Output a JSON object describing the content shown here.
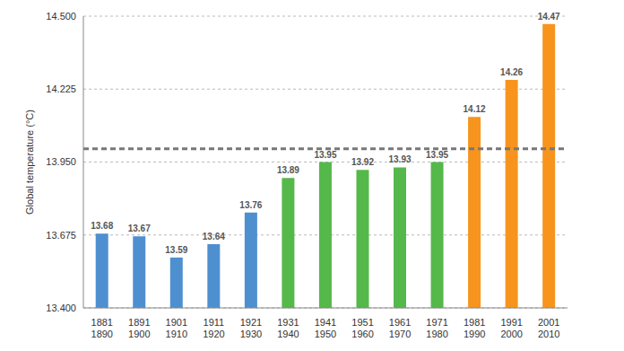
{
  "chart_data": {
    "type": "bar",
    "y_label": "Global temperature (°C)",
    "categories": [
      "1881\n1890",
      "1891\n1900",
      "1901\n1910",
      "1911\n1920",
      "1921\n1930",
      "1931\n1940",
      "1941\n1950",
      "1951\n1960",
      "1961\n1970",
      "1971\n1980",
      "1981\n1990",
      "1991\n2000",
      "2001\n2010"
    ],
    "values": [
      13.68,
      13.67,
      13.59,
      13.64,
      13.76,
      13.89,
      13.95,
      13.92,
      13.93,
      13.95,
      14.12,
      14.26,
      14.47
    ],
    "colors": [
      "#4e8fd0",
      "#4e8fd0",
      "#4e8fd0",
      "#4e8fd0",
      "#4e8fd0",
      "#55b84a",
      "#55b84a",
      "#55b84a",
      "#55b84a",
      "#55b84a",
      "#f7941d",
      "#f7941d",
      "#f7941d"
    ],
    "ylim": [
      13.4,
      14.5
    ],
    "yticks": [
      {
        "value": 13.4,
        "label": "13.400"
      },
      {
        "value": 13.675,
        "label": "13.675"
      },
      {
        "value": 13.95,
        "label": "13.950"
      },
      {
        "value": 14.225,
        "label": "14.225"
      },
      {
        "value": 14.5,
        "label": "14.500"
      }
    ],
    "reference_line": 14.0,
    "grid": true,
    "data_labels": true
  }
}
